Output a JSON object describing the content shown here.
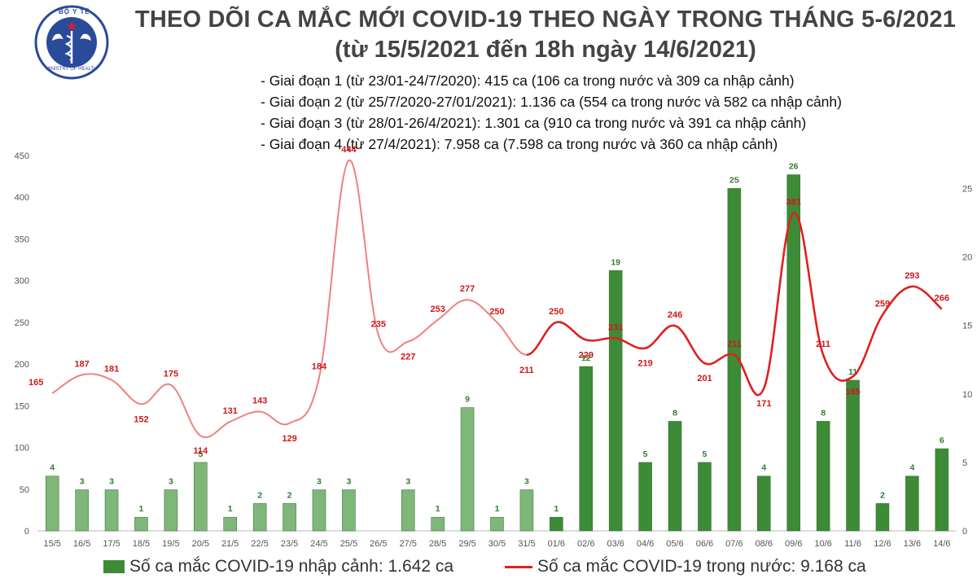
{
  "header": {
    "logo_text_top": "BỘ Y TẾ",
    "logo_text_bottom": "MINISTRY OF HEALTH",
    "title": "THEO DÕI CA MẮC MỚI COVID-19 THEO NGÀY TRONG THÁNG 5-6/2021",
    "subtitle": "(từ 15/5/2021 đến 18h ngày 14/6/2021)",
    "notes": [
      "- Giai đoạn 1 (từ 23/01-24/7/2020): 415 ca (106 ca trong nước và 309 ca nhập cảnh)",
      "- Giai đoạn 2 (từ 25/7/2020-27/01/2021): 1.136 ca (554 ca trong nước và 582 ca nhập cảnh)",
      "- Giai đoạn 3 (từ 28/01-26/4/2021): 1.301 ca (910 ca trong nước và 391 ca nhập cảnh)",
      "- Giai đoạn 4 (từ 27/4/2021): 7.958 ca (7.598 ca trong nước và 360 ca nhập cảnh)"
    ]
  },
  "colors": {
    "bar_light": "#7fb77a",
    "bar_dark": "#3d8b37",
    "line_light": "#f08080",
    "line_dark": "#e02020",
    "bar_label": "#2e7d32",
    "line_label": "#d01818",
    "logo_blue": "#2a4a9a"
  },
  "chart_data": {
    "type": "bar+line",
    "categories": [
      "15/5",
      "16/5",
      "17/5",
      "18/5",
      "19/5",
      "20/5",
      "21/5",
      "22/5",
      "23/5",
      "24/5",
      "25/5",
      "26/5",
      "27/5",
      "28/5",
      "29/5",
      "30/5",
      "31/5",
      "01/6",
      "02/6",
      "03/6",
      "04/6",
      "05/6",
      "06/6",
      "07/6",
      "08/6",
      "09/6",
      "10/6",
      "11/6",
      "12/6",
      "13/6",
      "14/6"
    ],
    "left_axis": {
      "ylim": [
        0,
        450
      ],
      "ticks": [
        0,
        50,
        100,
        150,
        200,
        250,
        300,
        350,
        400,
        450
      ]
    },
    "right_axis": {
      "ylim": [
        0,
        27.4
      ],
      "ticks": [
        0,
        5,
        10,
        15,
        20,
        25
      ]
    },
    "series": [
      {
        "name": "Số ca mắc COVID-19 nhập cảnh: 1.642 ca",
        "type": "bar",
        "axis": "right",
        "values": [
          4,
          3,
          3,
          1,
          3,
          5,
          1,
          2,
          2,
          3,
          3,
          null,
          3,
          1,
          9,
          1,
          3,
          1,
          12,
          19,
          5,
          8,
          5,
          25,
          4,
          26,
          8,
          11,
          2,
          4,
          6
        ]
      },
      {
        "name": "Số ca mắc COVID-19 trong nước: 9.168 ca",
        "type": "line",
        "axis": "left",
        "values": [
          165,
          187,
          181,
          152,
          175,
          114,
          131,
          143,
          129,
          184,
          444,
          235,
          227,
          253,
          277,
          250,
          211,
          250,
          229,
          231,
          219,
          246,
          201,
          211,
          171,
          381,
          211,
          185,
          259,
          293,
          266
        ]
      }
    ],
    "highlight_from_index": 17
  }
}
